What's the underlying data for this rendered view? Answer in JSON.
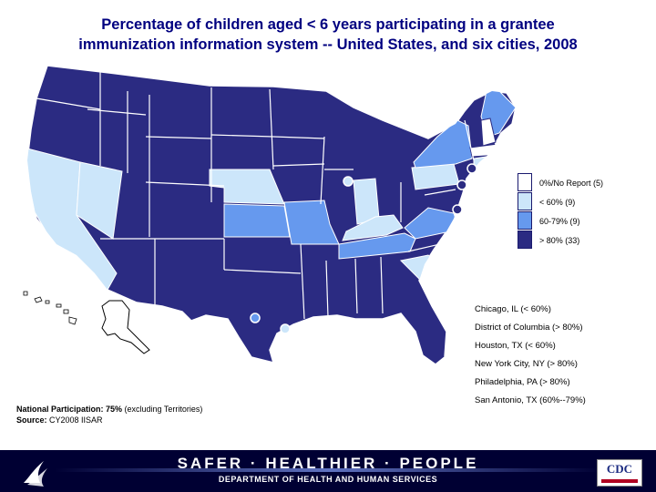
{
  "title": {
    "line1": "Percentage of children aged < 6 years participating in a grantee",
    "line2": "immunization information system -- United States, and six cities, 2008"
  },
  "colors": {
    "gt80": "#2b2b82",
    "c60_79": "#6699ee",
    "lt60": "#cce6fa",
    "no_report": "#ffffff",
    "state_border": "#ffffff",
    "banner": "#000033"
  },
  "legend": [
    {
      "label": "0%/No Report (5)",
      "color": "#ffffff"
    },
    {
      "label": "< 60% (9)",
      "color": "#cce6fa"
    },
    {
      "label": "60-79% (9)",
      "color": "#6699ee"
    },
    {
      "label": "> 80% (33)",
      "color": "#2b2b82"
    }
  ],
  "cities": [
    "Chicago, IL   (< 60%)",
    "District of Columbia (> 80%)",
    "Houston, TX (< 60%)",
    "New York City, NY (> 80%)",
    "Philadelphia, PA (> 80%)",
    "San Antonio, TX (60%--79%)"
  ],
  "footer": {
    "participation_label": "National Participation: 75%",
    "participation_note": " (excluding Territories)",
    "source_label": "Source:",
    "source_value": " CY2008 IISAR"
  },
  "banner": {
    "title": "SAFER · HEALTHIER · PEOPLE",
    "subtitle": "DEPARTMENT OF HEALTH AND HUMAN SERVICES",
    "logo_left": "hhs-eagle-logo",
    "logo_right": "CDC"
  }
}
